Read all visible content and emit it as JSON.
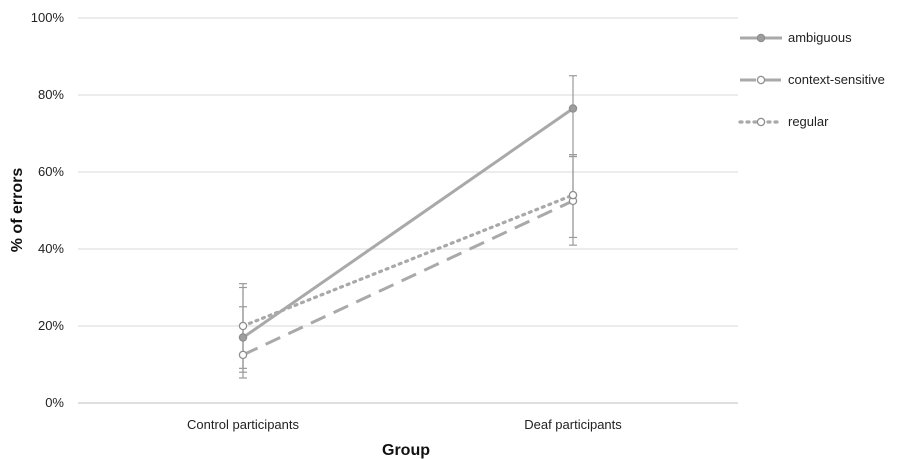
{
  "chart_data": {
    "type": "line",
    "title": "",
    "xlabel": "Group",
    "ylabel": "% of errors",
    "categories": [
      "Control participants",
      "Deaf participants"
    ],
    "ylim": [
      0,
      100
    ],
    "yticks": [
      0,
      20,
      40,
      60,
      80,
      100
    ],
    "ytick_labels": [
      "0%",
      "20%",
      "40%",
      "60%",
      "80%",
      "100%"
    ],
    "grid": "horizontal",
    "legend_position": "right",
    "series": [
      {
        "name": "ambiguous",
        "values": [
          17,
          76.5
        ],
        "error_low": [
          9,
          64.5
        ],
        "error_high": [
          25,
          85
        ],
        "line_style": "solid",
        "marker": "filled-circle",
        "color": "#a9a9a9"
      },
      {
        "name": "context-sensitive",
        "values": [
          12.5,
          52.5
        ],
        "error_low": [
          6.5,
          41
        ],
        "error_high": [
          30,
          64
        ],
        "line_style": "dashed",
        "marker": "open-circle",
        "color": "#a9a9a9"
      },
      {
        "name": "regular",
        "values": [
          20,
          54
        ],
        "error_low": [
          8,
          43
        ],
        "error_high": [
          31,
          64.5
        ],
        "line_style": "dotted",
        "marker": "open-circle",
        "color": "#a9a9a9"
      }
    ]
  }
}
